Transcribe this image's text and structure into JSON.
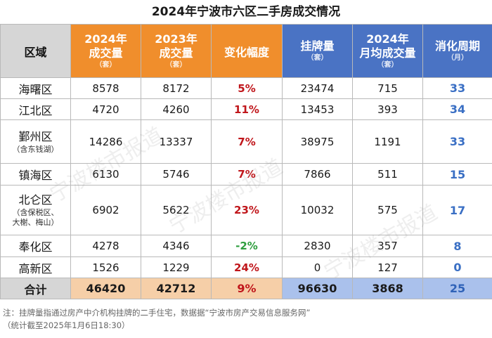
{
  "title": "2024年宁波市六区二手房成交情况",
  "headers": {
    "region": "区域",
    "sales_2024": {
      "main1": "2024年",
      "main2": "成交量",
      "unit": "（套）"
    },
    "sales_2023": {
      "main1": "2023年",
      "main2": "成交量",
      "unit": "（套）"
    },
    "change": "变化幅度",
    "listings": {
      "main": "挂牌量",
      "unit": "（套）"
    },
    "monthly_avg": {
      "main1": "2024年",
      "main2": "月均成交量",
      "unit": "（套）"
    },
    "cycle": {
      "main": "消化周期",
      "unit": "（月）"
    }
  },
  "rows": [
    {
      "region": "海曙区",
      "sub": "",
      "sales_2024": "8578",
      "sales_2023": "8172",
      "change": "5%",
      "listings": "23474",
      "monthly_avg": "715",
      "cycle": "33"
    },
    {
      "region": "江北区",
      "sub": "",
      "sales_2024": "4720",
      "sales_2023": "4260",
      "change": "11%",
      "listings": "13453",
      "monthly_avg": "393",
      "cycle": "34"
    },
    {
      "region": "鄞州区",
      "sub": "（含东钱湖）",
      "sales_2024": "14286",
      "sales_2023": "13337",
      "change": "7%",
      "listings": "38975",
      "monthly_avg": "1191",
      "cycle": "33"
    },
    {
      "region": "镇海区",
      "sub": "",
      "sales_2024": "6130",
      "sales_2023": "5746",
      "change": "7%",
      "listings": "7866",
      "monthly_avg": "511",
      "cycle": "15"
    },
    {
      "region": "北仑区",
      "sub": "（含保税区、",
      "sub2": "大榭、梅山）",
      "sales_2024": "6902",
      "sales_2023": "5622",
      "change": "23%",
      "listings": "10032",
      "monthly_avg": "575",
      "cycle": "17"
    },
    {
      "region": "奉化区",
      "sub": "",
      "sales_2024": "4278",
      "sales_2023": "4346",
      "change": "-2%",
      "listings": "2830",
      "monthly_avg": "357",
      "cycle": "8"
    },
    {
      "region": "高新区",
      "sub": "",
      "sales_2024": "1526",
      "sales_2023": "1229",
      "change": "24%",
      "listings": "0",
      "monthly_avg": "127",
      "cycle": "0"
    }
  ],
  "total": {
    "label": "合计",
    "sales_2024": "46420",
    "sales_2023": "42712",
    "change": "9%",
    "listings": "96630",
    "monthly_avg": "3868",
    "cycle": "25"
  },
  "note": {
    "line1": "注：挂牌量指通过房产中介机构挂牌的二手住宅，数据据“宁波市房产交易信息服务网”",
    "line2": "（统计截至2025年1月6日18:30）"
  },
  "watermark": "宁波楼市报道",
  "colors": {
    "header_orange": "#f08e2c",
    "header_blue": "#4a73c4",
    "increase": "#c0161b",
    "decrease": "#2e9e3e",
    "cycle": "#3a6fc4"
  }
}
